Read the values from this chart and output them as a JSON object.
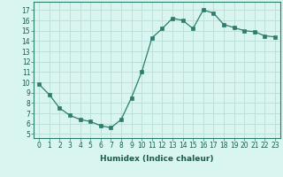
{
  "x": [
    0,
    1,
    2,
    3,
    4,
    5,
    6,
    7,
    8,
    9,
    10,
    11,
    12,
    13,
    14,
    15,
    16,
    17,
    18,
    19,
    20,
    21,
    22,
    23
  ],
  "y": [
    9.8,
    8.8,
    7.5,
    6.8,
    6.4,
    6.2,
    5.8,
    5.6,
    6.4,
    8.5,
    11.0,
    14.3,
    15.2,
    16.2,
    16.0,
    15.2,
    17.0,
    16.7,
    15.6,
    15.3,
    15.0,
    14.9,
    14.5,
    14.4
  ],
  "line_color": "#2d7d6e",
  "marker": "s",
  "marker_size": 2.5,
  "bg_color": "#d8f5f0",
  "grid_color": "#b8ddd8",
  "xlabel": "Humidex (Indice chaleur)",
  "ylabel_ticks": [
    5,
    6,
    7,
    8,
    9,
    10,
    11,
    12,
    13,
    14,
    15,
    16,
    17
  ],
  "ylim": [
    4.6,
    17.8
  ],
  "xlim": [
    -0.5,
    23.5
  ],
  "xticks": [
    0,
    1,
    2,
    3,
    4,
    5,
    6,
    7,
    8,
    9,
    10,
    11,
    12,
    13,
    14,
    15,
    16,
    17,
    18,
    19,
    20,
    21,
    22,
    23
  ],
  "tick_fontsize": 5.5,
  "xlabel_fontsize": 6.5
}
